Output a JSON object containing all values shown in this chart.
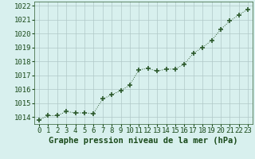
{
  "x": [
    0,
    1,
    2,
    3,
    4,
    5,
    6,
    7,
    8,
    9,
    10,
    11,
    12,
    13,
    14,
    15,
    16,
    17,
    18,
    19,
    20,
    21,
    22,
    23
  ],
  "y": [
    1013.8,
    1014.1,
    1014.1,
    1014.4,
    1014.3,
    1014.3,
    1014.25,
    1015.3,
    1015.6,
    1015.9,
    1016.3,
    1017.4,
    1017.5,
    1017.3,
    1017.45,
    1017.45,
    1017.8,
    1018.6,
    1019.0,
    1019.5,
    1020.3,
    1020.9,
    1021.35,
    1021.75
  ],
  "ylim_min": 1013.5,
  "ylim_max": 1022.3,
  "yticks": [
    1014,
    1015,
    1016,
    1017,
    1018,
    1019,
    1020,
    1021,
    1022
  ],
  "xlabel": "Graphe pression niveau de la mer (hPa)",
  "line_color": "#2d5a2d",
  "marker_color": "#2d5a2d",
  "bg_plot": "#d8f0ee",
  "bg_fig": "#d8f0ee",
  "grid_color": "#b0c8c8",
  "tick_label_color": "#1a4a1a",
  "xlabel_color": "#1a4a1a",
  "xlabel_fontsize": 7.5,
  "tick_fontsize": 6.5
}
